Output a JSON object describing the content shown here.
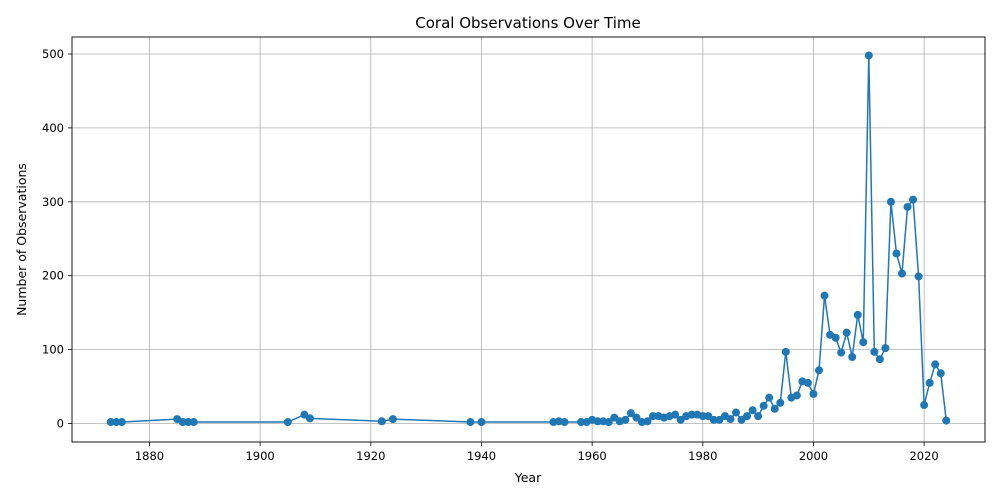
{
  "chart_data": {
    "type": "line",
    "title": "Coral Observations Over Time",
    "xlabel": "Year",
    "ylabel": "Number of Observations",
    "xlim": [
      1866,
      2031
    ],
    "ylim": [
      -25,
      523
    ],
    "xticks": [
      1880,
      1900,
      1920,
      1940,
      1960,
      1980,
      2000,
      2020
    ],
    "yticks": [
      0,
      100,
      200,
      300,
      400,
      500
    ],
    "grid": true,
    "marker": "circle",
    "color": "#1f77b4",
    "x": [
      1873,
      1874,
      1875,
      1885,
      1886,
      1887,
      1888,
      1905,
      1908,
      1909,
      1922,
      1924,
      1938,
      1940,
      1953,
      1954,
      1955,
      1958,
      1959,
      1960,
      1961,
      1962,
      1963,
      1964,
      1965,
      1966,
      1967,
      1968,
      1969,
      1970,
      1971,
      1972,
      1973,
      1974,
      1975,
      1976,
      1977,
      1978,
      1979,
      1980,
      1981,
      1982,
      1983,
      1984,
      1985,
      1986,
      1987,
      1988,
      1989,
      1990,
      1991,
      1992,
      1993,
      1994,
      1995,
      1996,
      1997,
      1998,
      1999,
      2000,
      2001,
      2002,
      2003,
      2004,
      2005,
      2006,
      2007,
      2008,
      2009,
      2010,
      2011,
      2012,
      2013,
      2014,
      2015,
      2016,
      2017,
      2018,
      2019,
      2020,
      2021,
      2022,
      2023,
      2024
    ],
    "y": [
      2,
      2,
      2,
      6,
      2,
      2,
      2,
      2,
      12,
      7,
      3,
      6,
      2,
      2,
      2,
      3,
      2,
      2,
      2,
      5,
      3,
      3,
      2,
      8,
      3,
      5,
      14,
      8,
      2,
      3,
      10,
      10,
      8,
      10,
      12,
      5,
      10,
      12,
      12,
      10,
      10,
      5,
      5,
      10,
      6,
      15,
      5,
      10,
      18,
      10,
      24,
      35,
      20,
      28,
      97,
      35,
      38,
      57,
      55,
      40,
      72,
      173,
      120,
      116,
      96,
      123,
      90,
      147,
      110,
      498,
      97,
      87,
      102,
      300,
      230,
      203,
      293,
      303,
      199,
      25,
      55,
      80,
      68,
      4
    ]
  }
}
